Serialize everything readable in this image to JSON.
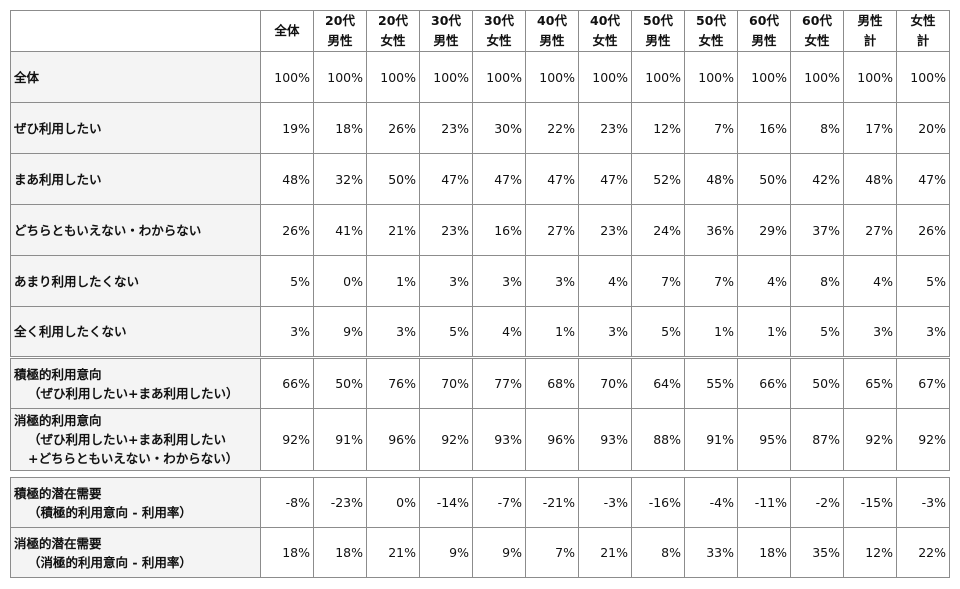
{
  "table": {
    "header": [
      [
        "全体"
      ],
      [
        "20代",
        "男性"
      ],
      [
        "20代",
        "女性"
      ],
      [
        "30代",
        "男性"
      ],
      [
        "30代",
        "女性"
      ],
      [
        "40代",
        "男性"
      ],
      [
        "40代",
        "女性"
      ],
      [
        "50代",
        "男性"
      ],
      [
        "50代",
        "女性"
      ],
      [
        "60代",
        "男性"
      ],
      [
        "60代",
        "女性"
      ],
      [
        "男性",
        "計"
      ],
      [
        "女性",
        "計"
      ]
    ],
    "rows": [
      {
        "label": [
          "全体"
        ],
        "values": [
          "100%",
          "100%",
          "100%",
          "100%",
          "100%",
          "100%",
          "100%",
          "100%",
          "100%",
          "100%",
          "100%",
          "100%",
          "100%"
        ]
      },
      {
        "label": [
          "ぜひ利用したい"
        ],
        "values": [
          "19%",
          "18%",
          "26%",
          "23%",
          "30%",
          "22%",
          "23%",
          "12%",
          "7%",
          "16%",
          "8%",
          "17%",
          "20%"
        ]
      },
      {
        "label": [
          "まあ利用したい"
        ],
        "values": [
          "48%",
          "32%",
          "50%",
          "47%",
          "47%",
          "47%",
          "47%",
          "52%",
          "48%",
          "50%",
          "42%",
          "48%",
          "47%"
        ]
      },
      {
        "label": [
          "どちらともいえない・わからない"
        ],
        "values": [
          "26%",
          "41%",
          "21%",
          "23%",
          "16%",
          "27%",
          "23%",
          "24%",
          "36%",
          "29%",
          "37%",
          "27%",
          "26%"
        ]
      },
      {
        "label": [
          "あまり利用したくない"
        ],
        "values": [
          "5%",
          "0%",
          "1%",
          "3%",
          "3%",
          "3%",
          "4%",
          "7%",
          "7%",
          "4%",
          "8%",
          "4%",
          "5%"
        ]
      },
      {
        "label": [
          "全く利用したくない"
        ],
        "values": [
          "3%",
          "9%",
          "3%",
          "5%",
          "4%",
          "1%",
          "3%",
          "5%",
          "1%",
          "1%",
          "5%",
          "3%",
          "3%"
        ]
      },
      {
        "label": [
          "積極的利用意向",
          "（ぜひ利用したい+まあ利用したい）"
        ],
        "values": [
          "66%",
          "50%",
          "76%",
          "70%",
          "77%",
          "68%",
          "70%",
          "64%",
          "55%",
          "66%",
          "50%",
          "65%",
          "67%"
        ]
      },
      {
        "label": [
          "消極的利用意向",
          "（ぜひ利用したい+まあ利用したい",
          "+どちらともいえない・わからない）"
        ],
        "values": [
          "92%",
          "91%",
          "96%",
          "92%",
          "93%",
          "96%",
          "93%",
          "88%",
          "91%",
          "95%",
          "87%",
          "92%",
          "92%"
        ]
      }
    ]
  },
  "table2": {
    "rows": [
      {
        "label": [
          "積極的潜在需要",
          "（積極的利用意向 - 利用率）"
        ],
        "values": [
          "-8%",
          "-23%",
          "0%",
          "-14%",
          "-7%",
          "-21%",
          "-3%",
          "-16%",
          "-4%",
          "-11%",
          "-2%",
          "-15%",
          "-3%"
        ]
      },
      {
        "label": [
          "消極的潜在需要",
          "（消極的利用意向 - 利用率）"
        ],
        "values": [
          "18%",
          "18%",
          "21%",
          "9%",
          "9%",
          "7%",
          "21%",
          "8%",
          "33%",
          "18%",
          "35%",
          "12%",
          "22%"
        ]
      }
    ]
  }
}
